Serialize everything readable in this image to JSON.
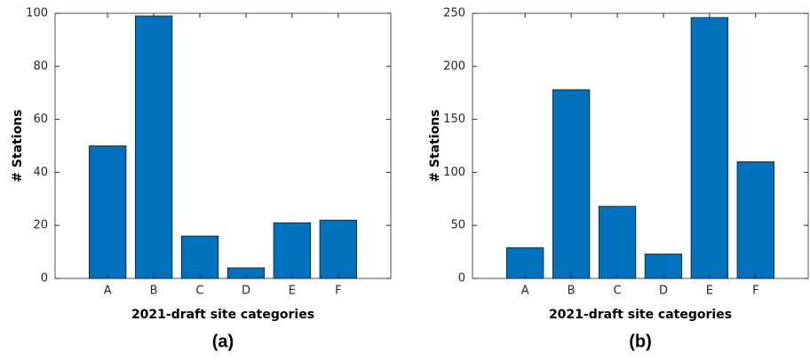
{
  "chart_data": [
    {
      "type": "bar",
      "caption": "(a)",
      "xlabel": "2021-draft site categories",
      "ylabel": "# Stations",
      "categories": [
        "A",
        "B",
        "C",
        "D",
        "E",
        "F"
      ],
      "values": [
        50,
        99,
        16,
        4,
        21,
        22
      ],
      "color": "#0072bd",
      "ylim": [
        0,
        100
      ],
      "yticks": [
        0,
        20,
        40,
        60,
        80,
        100
      ]
    },
    {
      "type": "bar",
      "caption": "(b)",
      "xlabel": "2021-draft site categories",
      "ylabel": "# Stations",
      "categories": [
        "A",
        "B",
        "C",
        "D",
        "E",
        "F"
      ],
      "values": [
        29,
        178,
        68,
        23,
        246,
        110
      ],
      "color": "#0072bd",
      "ylim": [
        0,
        250
      ],
      "yticks": [
        0,
        50,
        100,
        150,
        200,
        250
      ]
    }
  ]
}
